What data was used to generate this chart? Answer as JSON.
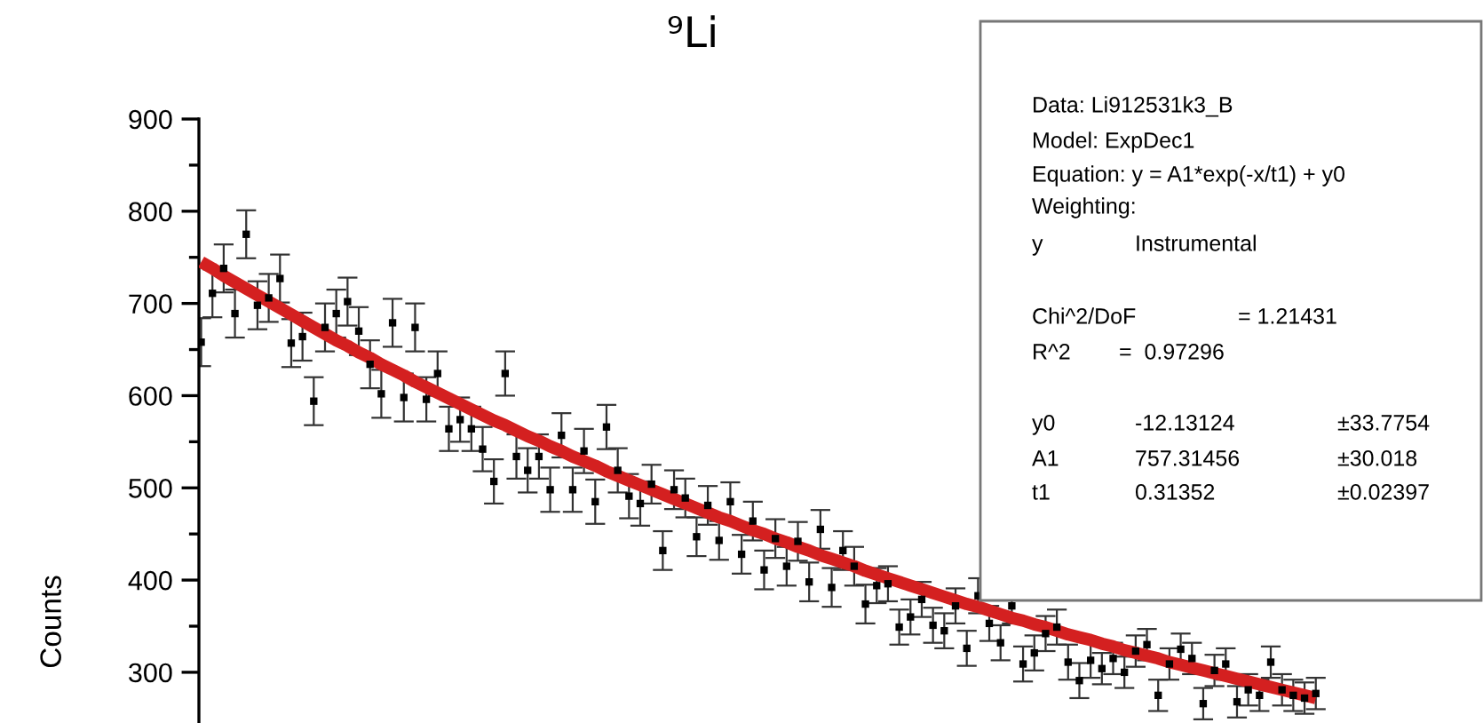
{
  "chart_data": {
    "type": "scatter",
    "title": "⁹Li",
    "ylabel": "Counts",
    "categories": [
      null,
      null,
      null,
      null,
      null,
      null,
      null,
      null,
      null,
      null,
      null,
      null,
      null,
      null,
      null,
      null,
      null,
      null,
      null,
      null,
      null,
      null,
      null,
      null,
      null,
      null,
      null,
      null,
      null,
      null,
      null,
      null,
      null,
      null,
      null,
      null,
      null,
      null,
      null,
      null,
      null,
      null,
      null,
      null,
      null,
      null,
      null,
      null,
      null,
      null,
      null,
      null,
      null,
      null,
      null,
      null,
      null,
      null,
      null,
      null,
      null,
      null,
      null,
      null,
      null,
      null,
      null,
      null,
      null,
      null,
      null,
      null,
      null,
      null,
      null,
      null,
      null,
      null,
      null,
      null,
      null,
      null,
      null,
      null,
      null,
      null,
      null,
      null,
      null,
      null,
      null,
      null,
      null,
      null,
      null,
      null,
      null,
      null,
      null,
      null
    ],
    "ylim": [
      245,
      900
    ],
    "yticks": [
      300,
      {
        "value": 350,
        "label": null
      },
      400,
      {
        "value": 450,
        "label": null
      },
      500,
      {
        "value": 550,
        "label": null
      },
      600,
      {
        "value": 650,
        "label": null
      },
      700,
      {
        "value": 750,
        "label": null
      },
      800,
      {
        "value": 850,
        "label": null
      },
      900
    ],
    "tick_labels": "y",
    "grid": false,
    "legend": false,
    "series": [
      {
        "color": "#000000",
        "marker": "square",
        "values": [
          658,
          711,
          738,
          689,
          775,
          698,
          706,
          727,
          657,
          664,
          594,
          674,
          689,
          702,
          670,
          634,
          602,
          679,
          598,
          674,
          596,
          624,
          564,
          574,
          564,
          542,
          507,
          624,
          534,
          519,
          534,
          498,
          557,
          498,
          540,
          485,
          566,
          519,
          491,
          483,
          504,
          432,
          498,
          489,
          447,
          481,
          443,
          485,
          428,
          464,
          411,
          445,
          415,
          442,
          398,
          455,
          392,
          432,
          415,
          374,
          394,
          396,
          349,
          360,
          379,
          351,
          345,
          372,
          326,
          383,
          353,
          332,
          372,
          309,
          321,
          342,
          349,
          311,
          291,
          313,
          304,
          315,
          300,
          323,
          330,
          275,
          309,
          325,
          315,
          266,
          302,
          309,
          268,
          281,
          275,
          311,
          281,
          275,
          272,
          277
        ],
        "errors": [
          26,
          26,
          26,
          26,
          26,
          26,
          26,
          26,
          26,
          26,
          26,
          26,
          26,
          26,
          26,
          26,
          26,
          26,
          26,
          26,
          24,
          24,
          24,
          24,
          24,
          24,
          24,
          24,
          24,
          24,
          24,
          24,
          24,
          24,
          24,
          24,
          24,
          24,
          24,
          24,
          21,
          21,
          21,
          21,
          21,
          21,
          21,
          21,
          21,
          21,
          21,
          21,
          21,
          21,
          21,
          21,
          21,
          21,
          21,
          21,
          19,
          19,
          19,
          19,
          19,
          19,
          19,
          19,
          19,
          19,
          19,
          19,
          19,
          19,
          19,
          19,
          19,
          19,
          19,
          19,
          17,
          17,
          17,
          17,
          17,
          17,
          17,
          17,
          17,
          17,
          17,
          17,
          17,
          17,
          17,
          17,
          17,
          17,
          17,
          17
        ]
      },
      {
        "type": "line",
        "color": "#d42020",
        "values": [
          745,
          738,
          730,
          723,
          716,
          709,
          702,
          695,
          688,
          681,
          674,
          667,
          660,
          654,
          647,
          641,
          634,
          628,
          622,
          615,
          609,
          603,
          597,
          591,
          585,
          579,
          573,
          568,
          562,
          556,
          551,
          545,
          540,
          534,
          529,
          524,
          518,
          513,
          508,
          503,
          498,
          493,
          488,
          483,
          478,
          473,
          468,
          464,
          459,
          454,
          450,
          445,
          441,
          436,
          432,
          427,
          423,
          419,
          415,
          410,
          406,
          402,
          398,
          394,
          390,
          386,
          382,
          378,
          374,
          371,
          367,
          363,
          359,
          356,
          352,
          349,
          345,
          341,
          338,
          335,
          331,
          328,
          324,
          321,
          318,
          315,
          311,
          308,
          305,
          302,
          299,
          296,
          293,
          290,
          287,
          284,
          281,
          278,
          275,
          272
        ]
      }
    ],
    "annotations": [
      "Data: Li912531k3_B",
      "Model: ExpDec1",
      "Equation: y = A1*exp(-x/t1) + y0",
      "Weighting:",
      "y",
      "Instrumental",
      "Chi^2/DoF",
      "= 1.21431",
      "R^2",
      "=  0.97296",
      "y0",
      "-12.13124",
      "±33.7754",
      "A1",
      "757.31456",
      "±30.018",
      "t1",
      "0.31352",
      "±0.02397"
    ]
  }
}
